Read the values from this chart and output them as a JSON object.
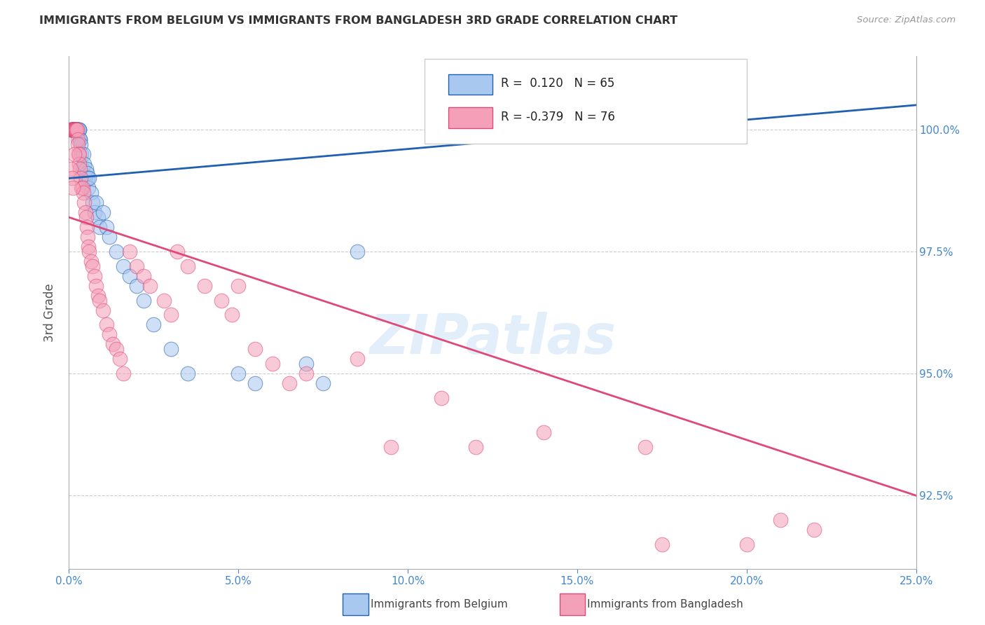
{
  "title": "IMMIGRANTS FROM BELGIUM VS IMMIGRANTS FROM BANGLADESH 3RD GRADE CORRELATION CHART",
  "source": "Source: ZipAtlas.com",
  "ylabel": "3rd Grade",
  "xlim": [
    0.0,
    25.0
  ],
  "ylim": [
    91.0,
    101.5
  ],
  "ytick_vals": [
    92.5,
    95.0,
    97.5,
    100.0
  ],
  "ytick_labels": [
    "92.5%",
    "95.0%",
    "97.5%",
    "100.0%"
  ],
  "xtick_vals": [
    0,
    5,
    10,
    15,
    20,
    25
  ],
  "xtick_labels": [
    "0.0%",
    "5.0%",
    "10.0%",
    "15.0%",
    "20.0%",
    "25.0%"
  ],
  "legend_belgium": "Immigrants from Belgium",
  "legend_bangladesh": "Immigrants from Bangladesh",
  "R_belgium": 0.12,
  "N_belgium": 65,
  "R_bangladesh": -0.379,
  "N_bangladesh": 76,
  "belgium_color": "#a8c8f0",
  "bangladesh_color": "#f4a0b8",
  "belgium_line_color": "#2060b0",
  "bangladesh_line_color": "#e04878",
  "watermark": "ZIPatlas",
  "belgium_line_x0": 0.0,
  "belgium_line_y0": 99.0,
  "belgium_line_x1": 25.0,
  "belgium_line_y1": 100.5,
  "bangladesh_line_x0": 0.0,
  "bangladesh_line_y0": 98.2,
  "bangladesh_line_x1": 25.0,
  "bangladesh_line_y1": 92.5,
  "belgium_x": [
    0.05,
    0.07,
    0.08,
    0.09,
    0.1,
    0.1,
    0.1,
    0.11,
    0.12,
    0.12,
    0.13,
    0.14,
    0.15,
    0.15,
    0.16,
    0.17,
    0.18,
    0.18,
    0.19,
    0.2,
    0.2,
    0.22,
    0.23,
    0.24,
    0.25,
    0.26,
    0.27,
    0.28,
    0.3,
    0.3,
    0.32,
    0.33,
    0.35,
    0.37,
    0.4,
    0.42,
    0.45,
    0.48,
    0.5,
    0.52,
    0.55,
    0.58,
    0.6,
    0.65,
    0.7,
    0.75,
    0.8,
    0.85,
    0.9,
    1.0,
    1.1,
    1.2,
    1.4,
    1.6,
    1.8,
    2.0,
    2.2,
    2.5,
    3.0,
    3.5,
    5.0,
    5.5,
    7.0,
    7.5,
    8.5
  ],
  "belgium_y": [
    100.0,
    100.0,
    100.0,
    100.0,
    100.0,
    100.0,
    100.0,
    100.0,
    100.0,
    100.0,
    100.0,
    100.0,
    100.0,
    100.0,
    100.0,
    100.0,
    100.0,
    100.0,
    100.0,
    100.0,
    100.0,
    100.0,
    100.0,
    100.0,
    100.0,
    100.0,
    100.0,
    100.0,
    100.0,
    100.0,
    99.8,
    99.8,
    99.7,
    99.5,
    99.2,
    99.5,
    99.3,
    99.0,
    99.2,
    99.1,
    99.0,
    98.8,
    99.0,
    98.7,
    98.5,
    98.3,
    98.5,
    98.2,
    98.0,
    98.3,
    98.0,
    97.8,
    97.5,
    97.2,
    97.0,
    96.8,
    96.5,
    96.0,
    95.5,
    95.0,
    95.0,
    94.8,
    95.2,
    94.8,
    97.5
  ],
  "bangladesh_x": [
    0.05,
    0.07,
    0.08,
    0.1,
    0.11,
    0.12,
    0.13,
    0.14,
    0.15,
    0.16,
    0.17,
    0.18,
    0.19,
    0.2,
    0.22,
    0.23,
    0.25,
    0.27,
    0.28,
    0.3,
    0.3,
    0.32,
    0.35,
    0.37,
    0.4,
    0.42,
    0.45,
    0.48,
    0.5,
    0.52,
    0.55,
    0.58,
    0.6,
    0.65,
    0.7,
    0.75,
    0.8,
    0.85,
    0.9,
    1.0,
    1.1,
    1.2,
    1.3,
    1.4,
    1.5,
    1.6,
    1.8,
    2.0,
    2.2,
    2.4,
    2.8,
    3.0,
    3.2,
    3.5,
    4.0,
    4.5,
    4.8,
    5.0,
    5.5,
    6.0,
    6.5,
    7.0,
    8.5,
    9.5,
    11.0,
    12.0,
    14.0,
    17.0,
    17.5,
    20.0,
    21.0,
    22.0,
    0.06,
    0.09,
    0.11,
    0.16
  ],
  "bangladesh_y": [
    100.0,
    100.0,
    100.0,
    100.0,
    100.0,
    100.0,
    100.0,
    100.0,
    100.0,
    100.0,
    100.0,
    100.0,
    100.0,
    100.0,
    100.0,
    100.0,
    99.8,
    99.7,
    99.5,
    99.5,
    99.3,
    99.2,
    99.0,
    98.8,
    98.8,
    98.7,
    98.5,
    98.3,
    98.2,
    98.0,
    97.8,
    97.6,
    97.5,
    97.3,
    97.2,
    97.0,
    96.8,
    96.6,
    96.5,
    96.3,
    96.0,
    95.8,
    95.6,
    95.5,
    95.3,
    95.0,
    97.5,
    97.2,
    97.0,
    96.8,
    96.5,
    96.2,
    97.5,
    97.2,
    96.8,
    96.5,
    96.2,
    96.8,
    95.5,
    95.2,
    94.8,
    95.0,
    95.3,
    93.5,
    94.5,
    93.5,
    93.8,
    93.5,
    91.5,
    91.5,
    92.0,
    91.8,
    99.2,
    99.0,
    98.8,
    99.5
  ]
}
